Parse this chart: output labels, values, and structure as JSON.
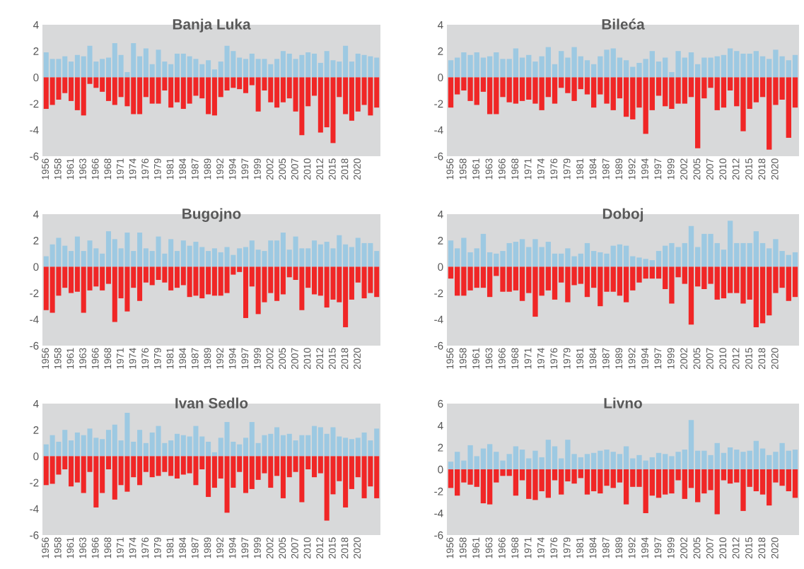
{
  "chart_data": [
    {
      "type": "bar",
      "title": "Banja Luka",
      "stacked": true,
      "grid": false,
      "ylim": [
        -6,
        4
      ],
      "yticks": [
        -6,
        -4,
        -2,
        0,
        2,
        4
      ],
      "categories": [
        "1956",
        null,
        "1958",
        null,
        "1961",
        null,
        "1963",
        null,
        "1966",
        null,
        "1968",
        null,
        "1971",
        null,
        "1974",
        null,
        "1976",
        null,
        "1979",
        null,
        "1981",
        null,
        "1984",
        null,
        "1987",
        null,
        "1989",
        null,
        "1992",
        null,
        "1994",
        null,
        "1997",
        null,
        "1999",
        null,
        "2002",
        null,
        "2005",
        null,
        "2007",
        null,
        "2010",
        null,
        "2012",
        null,
        "2015",
        null,
        "2018",
        null,
        "2020",
        null,
        null,
        null
      ],
      "series": [
        {
          "color": "#9dc9e2",
          "values": [
            1.9,
            1.4,
            1.4,
            1.6,
            1.2,
            1.7,
            1.6,
            2.4,
            1.2,
            1.4,
            1.5,
            2.6,
            1.7,
            0.4,
            2.6,
            1.6,
            2.2,
            1.0,
            2.1,
            1.2,
            1.0,
            1.8,
            1.8,
            1.6,
            1.4,
            1.0,
            1.3,
            0.6,
            1.2,
            2.4,
            2.0,
            1.5,
            1.4,
            1.8,
            1.4,
            1.4,
            1.0,
            1.4,
            2.0,
            1.8,
            1.4,
            1.7,
            1.9,
            1.8,
            1.1,
            2.0,
            1.3,
            1.2,
            2.4,
            1.2,
            1.8,
            1.7,
            1.6,
            1.5
          ]
        },
        {
          "color": "#f02626",
          "values": [
            -2.4,
            -2.1,
            -1.7,
            -1.2,
            -1.8,
            -2.5,
            -2.9,
            -0.5,
            -0.8,
            -1.1,
            -1.8,
            -2.1,
            -1.5,
            -2.2,
            -2.8,
            -2.8,
            -1.5,
            -2.0,
            -2.0,
            -1.0,
            -2.3,
            -1.9,
            -2.4,
            -2.0,
            -1.4,
            -1.6,
            -2.8,
            -2.9,
            -1.5,
            -1.0,
            -0.8,
            -0.9,
            -1.2,
            -0.6,
            -2.6,
            -1.0,
            -1.9,
            -2.3,
            -1.9,
            -1.6,
            -2.6,
            -4.4,
            -2.2,
            -1.4,
            -4.2,
            -3.8,
            -5.0,
            -1.5,
            -2.8,
            -3.3,
            -2.6,
            -2.1,
            -2.9,
            -2.3
          ]
        }
      ]
    },
    {
      "type": "bar",
      "title": "Bileća",
      "stacked": true,
      "grid": false,
      "ylim": [
        -6,
        4
      ],
      "yticks": [
        -6,
        -4,
        -2,
        0,
        2,
        4
      ],
      "categories": [
        "1956",
        null,
        "1958",
        null,
        "1961",
        null,
        "1963",
        null,
        "1966",
        null,
        "1968",
        null,
        "1971",
        null,
        "1974",
        null,
        "1976",
        null,
        "1979",
        null,
        "1981",
        null,
        "1984",
        null,
        "1987",
        null,
        "1989",
        null,
        "1992",
        null,
        "1994",
        null,
        "1997",
        null,
        "1999",
        null,
        "2002",
        null,
        "2005",
        null,
        "2007",
        null,
        "2010",
        null,
        "2012",
        null,
        "2015",
        null,
        "2018",
        null,
        "2020",
        null,
        null,
        null
      ],
      "series": [
        {
          "color": "#9dc9e2",
          "values": [
            1.3,
            1.5,
            1.9,
            1.7,
            1.9,
            1.5,
            1.6,
            1.9,
            1.4,
            1.4,
            2.2,
            1.5,
            1.7,
            1.2,
            1.6,
            2.3,
            1.0,
            2.0,
            1.5,
            2.3,
            1.6,
            1.3,
            1.0,
            1.6,
            2.1,
            2.2,
            1.5,
            1.3,
            0.8,
            1.1,
            1.4,
            2.0,
            1.2,
            1.5,
            0.4,
            2.0,
            1.5,
            1.9,
            1.0,
            1.5,
            1.5,
            1.6,
            1.7,
            2.2,
            2.0,
            1.8,
            1.8,
            2.0,
            1.6,
            1.4,
            2.1,
            1.6,
            1.3,
            1.7
          ]
        },
        {
          "color": "#f02626",
          "values": [
            -2.3,
            -1.3,
            -1.0,
            -1.8,
            -2.1,
            -1.1,
            -2.8,
            -2.8,
            -1.5,
            -1.9,
            -2.0,
            -1.8,
            -1.7,
            -2.0,
            -2.5,
            -1.5,
            -2.0,
            -0.8,
            -1.2,
            -1.8,
            -0.9,
            -1.3,
            -2.3,
            -1.3,
            -2.0,
            -2.5,
            -1.6,
            -3.0,
            -3.2,
            -2.3,
            -4.3,
            -2.5,
            -1.4,
            -2.2,
            -2.4,
            -2.0,
            -2.0,
            -1.5,
            -5.4,
            -1.6,
            -0.8,
            -2.5,
            -2.3,
            -1.0,
            -2.2,
            -4.1,
            -2.4,
            -1.9,
            -1.5,
            -5.5,
            -2.1,
            -1.7,
            -4.6,
            -2.3
          ]
        }
      ]
    },
    {
      "type": "bar",
      "title": "Bugojno",
      "stacked": true,
      "grid": false,
      "ylim": [
        -6,
        4
      ],
      "yticks": [
        -6,
        -4,
        -2,
        0,
        2,
        4
      ],
      "categories": [
        "1956",
        null,
        "1958",
        null,
        "1961",
        null,
        "1963",
        null,
        "1966",
        null,
        "1968",
        null,
        "1971",
        null,
        "1974",
        null,
        "1976",
        null,
        "1979",
        null,
        "1981",
        null,
        "1984",
        null,
        "1987",
        null,
        "1989",
        null,
        "1992",
        null,
        "1994",
        null,
        "1997",
        null,
        "1999",
        null,
        "2002",
        null,
        "2005",
        null,
        "2007",
        null,
        "2010",
        null,
        "2012",
        null,
        "2015",
        null,
        "2018",
        null,
        "2020",
        null,
        null,
        null
      ],
      "series": [
        {
          "color": "#9dc9e2",
          "values": [
            0.8,
            1.7,
            2.2,
            1.6,
            1.2,
            2.3,
            1.2,
            2.0,
            1.4,
            1.0,
            2.7,
            2.1,
            1.4,
            2.6,
            1.2,
            2.6,
            1.4,
            1.2,
            2.3,
            1.0,
            2.1,
            1.2,
            2.0,
            1.6,
            1.9,
            1.5,
            1.2,
            1.4,
            1.1,
            1.5,
            0.9,
            1.4,
            1.5,
            2.0,
            1.3,
            1.2,
            2.0,
            2.0,
            2.6,
            1.3,
            2.3,
            1.4,
            1.4,
            2.0,
            1.7,
            1.9,
            1.4,
            2.4,
            1.7,
            1.5,
            2.2,
            1.8,
            1.8,
            1.2
          ]
        },
        {
          "color": "#f02626",
          "values": [
            -3.3,
            -3.5,
            -2.2,
            -1.6,
            -2.0,
            -1.9,
            -3.5,
            -1.8,
            -1.5,
            -1.8,
            -1.3,
            -4.2,
            -2.4,
            -3.4,
            -1.6,
            -2.6,
            -1.2,
            -1.4,
            -1.0,
            -1.2,
            -1.8,
            -1.6,
            -1.4,
            -2.3,
            -2.2,
            -2.4,
            -2.1,
            -2.2,
            -2.2,
            -2.0,
            -0.6,
            -0.4,
            -3.9,
            -1.5,
            -3.6,
            -2.7,
            -2.0,
            -2.6,
            -2.1,
            -0.8,
            -1.0,
            -3.3,
            -1.6,
            -2.1,
            -2.2,
            -3.1,
            -2.5,
            -2.7,
            -4.6,
            -2.5,
            -1.2,
            -2.4,
            -2.0,
            -2.3
          ]
        }
      ]
    },
    {
      "type": "bar",
      "title": "Doboj",
      "stacked": true,
      "grid": false,
      "ylim": [
        -6,
        4
      ],
      "yticks": [
        -6,
        -4,
        -2,
        0,
        2,
        4
      ],
      "categories": [
        "1956",
        null,
        "1958",
        null,
        "1961",
        null,
        "1963",
        null,
        "1966",
        null,
        "1968",
        null,
        "1971",
        null,
        "1974",
        null,
        "1976",
        null,
        "1979",
        null,
        "1981",
        null,
        "1984",
        null,
        "1987",
        null,
        "1989",
        null,
        "1992",
        null,
        "1994",
        null,
        "1997",
        null,
        "1999",
        null,
        "2002",
        null,
        "2005",
        null,
        "2007",
        null,
        "2010",
        null,
        "2012",
        null,
        "2015",
        null,
        "2018",
        null,
        "2020",
        null,
        null,
        null
      ],
      "series": [
        {
          "color": "#9dc9e2",
          "values": [
            2.0,
            1.4,
            2.2,
            1.1,
            1.4,
            2.5,
            1.1,
            1.0,
            1.2,
            1.8,
            1.9,
            2.1,
            1.5,
            2.1,
            1.5,
            1.9,
            1.0,
            1.0,
            1.4,
            0.8,
            1.0,
            1.8,
            1.2,
            1.1,
            1.0,
            1.6,
            1.7,
            1.6,
            0.8,
            0.7,
            0.6,
            0.5,
            1.2,
            1.6,
            1.8,
            1.5,
            1.8,
            3.1,
            1.5,
            2.5,
            2.5,
            1.8,
            1.3,
            3.5,
            1.8,
            1.8,
            1.8,
            2.7,
            1.8,
            1.4,
            2.1,
            1.2,
            0.9,
            1.1
          ]
        },
        {
          "color": "#f02626",
          "values": [
            -0.9,
            -2.2,
            -2.2,
            -1.8,
            -1.6,
            -1.6,
            -2.3,
            -0.7,
            -1.9,
            -1.9,
            -1.8,
            -2.6,
            -2.0,
            -3.8,
            -2.2,
            -1.8,
            -2.5,
            -1.2,
            -2.7,
            -1.4,
            -1.3,
            -2.3,
            -1.6,
            -3.0,
            -1.9,
            -1.9,
            -2.2,
            -2.7,
            -1.8,
            -1.2,
            -0.9,
            -0.9,
            -0.9,
            -1.7,
            -2.8,
            -0.8,
            -1.3,
            -4.4,
            -1.5,
            -1.7,
            -1.3,
            -2.5,
            -2.4,
            -2.0,
            -2.0,
            -2.8,
            -2.5,
            -4.6,
            -4.3,
            -3.7,
            -2.0,
            -1.6,
            -2.6,
            -2.3
          ]
        }
      ]
    },
    {
      "type": "bar",
      "title": "Ivan Sedlo",
      "stacked": true,
      "grid": false,
      "ylim": [
        -6,
        4
      ],
      "yticks": [
        -6,
        -4,
        -2,
        0,
        2,
        4
      ],
      "categories": [
        "1956",
        null,
        "1958",
        null,
        "1961",
        null,
        "1963",
        null,
        "1966",
        null,
        "1968",
        null,
        "1971",
        null,
        "1974",
        null,
        "1976",
        null,
        "1979",
        null,
        "1981",
        null,
        "1984",
        null,
        "1987",
        null,
        "1989",
        null,
        "1992",
        null,
        "1994",
        null,
        "1997",
        null,
        "1999",
        null,
        "2002",
        null,
        "2005",
        null,
        "2007",
        null,
        "2010",
        null,
        "2012",
        null,
        "2015",
        null,
        "2018",
        null,
        "2020",
        null,
        null,
        null
      ],
      "series": [
        {
          "color": "#9dc9e2",
          "values": [
            0.9,
            1.6,
            1.1,
            2.0,
            1.2,
            1.8,
            1.6,
            2.1,
            1.4,
            1.3,
            2.0,
            2.4,
            1.2,
            3.3,
            1.1,
            2.0,
            1.0,
            1.8,
            2.3,
            1.0,
            1.2,
            1.7,
            1.6,
            1.5,
            2.3,
            1.5,
            1.1,
            0.3,
            1.4,
            2.6,
            1.1,
            0.9,
            1.4,
            2.6,
            1.0,
            1.6,
            1.7,
            2.2,
            1.6,
            1.7,
            1.2,
            1.6,
            1.6,
            2.3,
            2.2,
            1.7,
            2.2,
            1.5,
            1.4,
            1.3,
            1.4,
            1.8,
            1.2,
            2.1
          ]
        },
        {
          "color": "#f02626",
          "values": [
            -2.2,
            -2.1,
            -1.4,
            -1.0,
            -2.3,
            -2.0,
            -2.8,
            -1.2,
            -3.9,
            -2.8,
            -1.0,
            -3.3,
            -2.2,
            -2.7,
            -1.6,
            -2.2,
            -1.2,
            -1.6,
            -1.5,
            -1.2,
            -1.5,
            -1.7,
            -1.4,
            -1.3,
            -2.2,
            -1.0,
            -3.1,
            -2.4,
            -1.7,
            -4.3,
            -2.4,
            -1.2,
            -2.8,
            -2.5,
            -1.8,
            -1.3,
            -2.4,
            -1.5,
            -3.2,
            -1.6,
            -1.2,
            -3.5,
            -1.0,
            -1.6,
            -1.3,
            -4.9,
            -2.9,
            -1.9,
            -3.9,
            -2.5,
            -1.6,
            -3.2,
            -2.3,
            -3.2
          ]
        }
      ]
    },
    {
      "type": "bar",
      "title": "Livno",
      "stacked": true,
      "grid": false,
      "ylim": [
        -6,
        6
      ],
      "yticks": [
        -6,
        -4,
        -2,
        0,
        2,
        4,
        6
      ],
      "categories": [
        "1956",
        null,
        "1958",
        null,
        "1961",
        null,
        "1963",
        null,
        "1966",
        null,
        "1968",
        null,
        "1971",
        null,
        "1974",
        null,
        "1976",
        null,
        "1979",
        null,
        "1981",
        null,
        "1984",
        null,
        "1987",
        null,
        "1989",
        null,
        "1992",
        null,
        "1994",
        null,
        "1997",
        null,
        "1999",
        null,
        "2002",
        null,
        "2005",
        null,
        "2007",
        null,
        "2010",
        null,
        "2012",
        null,
        "2015",
        null,
        "2018",
        null,
        "2020",
        null,
        null,
        null
      ],
      "series": [
        {
          "color": "#9dc9e2",
          "values": [
            0.7,
            1.6,
            0.8,
            2.2,
            1.2,
            1.9,
            2.3,
            1.6,
            0.8,
            1.4,
            2.1,
            1.8,
            1.0,
            1.7,
            1.1,
            2.7,
            2.1,
            1.0,
            2.7,
            1.4,
            1.1,
            1.4,
            1.5,
            1.7,
            1.8,
            1.6,
            1.4,
            2.1,
            1.0,
            1.3,
            0.8,
            1.1,
            1.5,
            1.4,
            1.2,
            1.6,
            1.8,
            4.5,
            1.7,
            1.7,
            1.3,
            2.4,
            1.5,
            2.0,
            1.8,
            1.6,
            1.7,
            2.6,
            1.9,
            1.3,
            1.6,
            2.4,
            1.7,
            1.8
          ]
        },
        {
          "color": "#f02626",
          "values": [
            -1.7,
            -2.4,
            -1.2,
            -1.4,
            -1.6,
            -3.1,
            -3.2,
            -1.2,
            -0.6,
            -0.6,
            -2.4,
            -1.0,
            -2.7,
            -2.8,
            -2.0,
            -2.6,
            -1.0,
            -2.3,
            -1.1,
            -1.3,
            -0.8,
            -2.3,
            -2.0,
            -2.2,
            -1.5,
            -1.7,
            -1.2,
            -3.2,
            -1.6,
            -1.6,
            -4.0,
            -2.4,
            -2.6,
            -2.3,
            -2.2,
            -1.0,
            -2.7,
            -1.7,
            -3.0,
            -2.2,
            -1.9,
            -4.1,
            -1.0,
            -1.3,
            -1.2,
            -3.8,
            -1.6,
            -2.0,
            -2.3,
            -3.3,
            -1.2,
            -1.5,
            -2.0,
            -2.6
          ]
        }
      ]
    }
  ]
}
